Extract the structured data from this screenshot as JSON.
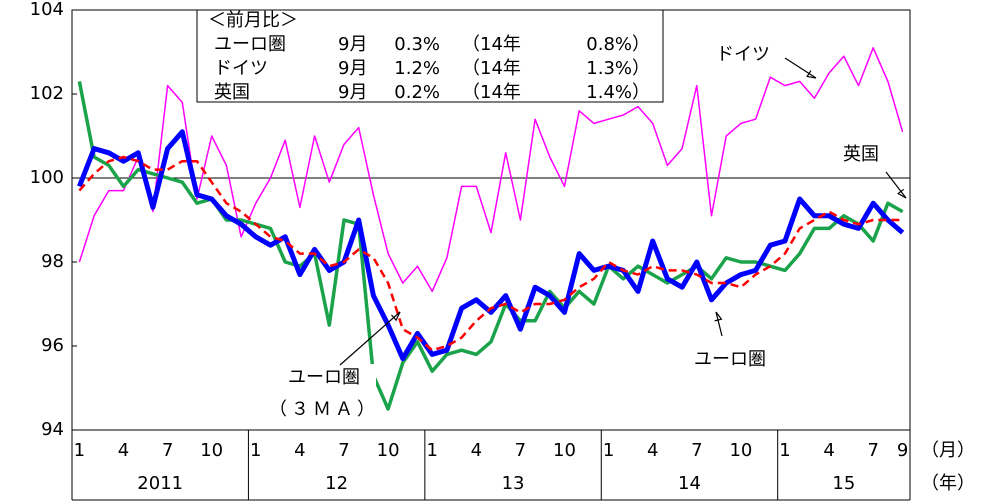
{
  "chart_data": {
    "type": "line",
    "categories": [
      "1",
      null,
      null,
      "4",
      null,
      null,
      "7",
      null,
      null,
      "10",
      null,
      null,
      "1",
      null,
      null,
      "4",
      null,
      null,
      "7",
      null,
      null,
      "10",
      null,
      null,
      "1",
      null,
      null,
      "4",
      null,
      null,
      "7",
      null,
      null,
      "10",
      null,
      null,
      "1",
      null,
      null,
      "4",
      null,
      null,
      "7",
      null,
      null,
      "10",
      null,
      null,
      "1",
      null,
      null,
      "4",
      null,
      null,
      "7",
      null,
      "9"
    ],
    "years": [
      "2011",
      "12",
      "13",
      "14",
      "15"
    ],
    "x_unit_month": "（月）",
    "x_unit_year": "（年）",
    "ylim": [
      94,
      104
    ],
    "yticks": [
      94,
      96,
      98,
      100,
      102,
      104
    ],
    "hline": 100,
    "series": [
      {
        "name": "ユーロ圏",
        "color": "#0000ff",
        "width": 5,
        "dash": false,
        "values": [
          99.8,
          100.7,
          100.6,
          100.4,
          100.6,
          99.3,
          100.7,
          101.1,
          99.6,
          99.5,
          99.1,
          98.9,
          98.6,
          98.4,
          98.6,
          97.7,
          98.3,
          97.8,
          98.0,
          99.0,
          97.2,
          96.5,
          95.7,
          96.3,
          95.8,
          95.9,
          96.9,
          97.1,
          96.8,
          97.2,
          96.4,
          97.4,
          97.2,
          96.8,
          98.2,
          97.8,
          97.9,
          97.8,
          97.3,
          98.5,
          97.6,
          97.4,
          98.0,
          97.1,
          97.5,
          97.7,
          97.8,
          98.4,
          98.5,
          99.5,
          99.1,
          99.1,
          98.9,
          98.8,
          99.4,
          99.0,
          98.7
        ]
      },
      {
        "name": "ドイツ",
        "color": "#ff00ff",
        "width": 1.5,
        "dash": false,
        "values": [
          98.0,
          99.1,
          99.7,
          99.7,
          100.5,
          99.2,
          102.2,
          101.8,
          99.5,
          101.0,
          100.3,
          98.6,
          99.4,
          100.0,
          100.9,
          99.3,
          101.0,
          99.9,
          100.8,
          101.2,
          99.6,
          98.2,
          97.5,
          97.9,
          97.3,
          98.1,
          99.8,
          99.8,
          98.7,
          100.6,
          99.0,
          101.4,
          100.5,
          99.8,
          101.6,
          101.3,
          101.4,
          101.5,
          101.7,
          101.3,
          100.3,
          100.7,
          102.2,
          99.1,
          101.0,
          101.3,
          101.4,
          102.4,
          102.2,
          102.3,
          101.9,
          102.5,
          102.9,
          102.2,
          103.1,
          102.3,
          101.1
        ]
      },
      {
        "name": "英国",
        "color": "#1aa34a",
        "width": 3.5,
        "dash": false,
        "values": [
          102.3,
          100.5,
          100.3,
          99.8,
          100.2,
          100.1,
          100.0,
          99.9,
          99.4,
          99.5,
          99.0,
          99.0,
          98.9,
          98.8,
          98.0,
          97.9,
          98.2,
          96.5,
          99.0,
          98.9,
          95.3,
          94.5,
          95.6,
          96.1,
          95.4,
          95.8,
          95.9,
          95.8,
          96.1,
          97.0,
          96.6,
          96.6,
          97.3,
          96.9,
          97.3,
          97.0,
          97.9,
          97.6,
          97.9,
          97.7,
          97.5,
          97.7,
          97.9,
          97.6,
          98.1,
          98.0,
          98.0,
          97.9,
          97.8,
          98.2,
          98.8,
          98.8,
          99.1,
          98.9,
          98.5,
          99.4,
          99.2
        ]
      },
      {
        "name_lines": [
          "ユーロ圏",
          "（３ＭＡ）"
        ],
        "color": "#ff0000",
        "width": 2.5,
        "dash": true,
        "values": [
          99.7,
          100.1,
          100.4,
          100.5,
          100.4,
          100.2,
          100.2,
          100.4,
          100.4,
          99.9,
          99.4,
          99.2,
          98.9,
          98.6,
          98.5,
          98.2,
          98.2,
          97.9,
          98.0,
          98.3,
          98.1,
          97.5,
          96.4,
          96.2,
          95.9,
          96.0,
          96.2,
          96.6,
          96.9,
          97.0,
          96.8,
          97.0,
          97.0,
          97.1,
          97.4,
          97.6,
          98.0,
          97.8,
          97.7,
          97.9,
          97.8,
          97.8,
          97.7,
          97.5,
          97.5,
          97.4,
          97.7,
          97.9,
          98.2,
          98.8,
          99.0,
          99.2,
          99.0,
          98.9,
          99.0,
          99.0,
          99.0
        ]
      }
    ],
    "note_box": {
      "title": "＜前月比＞",
      "rows": [
        [
          "ユーロ圏",
          "9月",
          "0.3%",
          "（14年",
          "0.8%）"
        ],
        [
          "ドイツ",
          "9月",
          "1.2%",
          "（14年",
          "1.3%）"
        ],
        [
          "英国",
          "9月",
          "0.2%",
          "（14年",
          "1.4%）"
        ]
      ]
    }
  }
}
